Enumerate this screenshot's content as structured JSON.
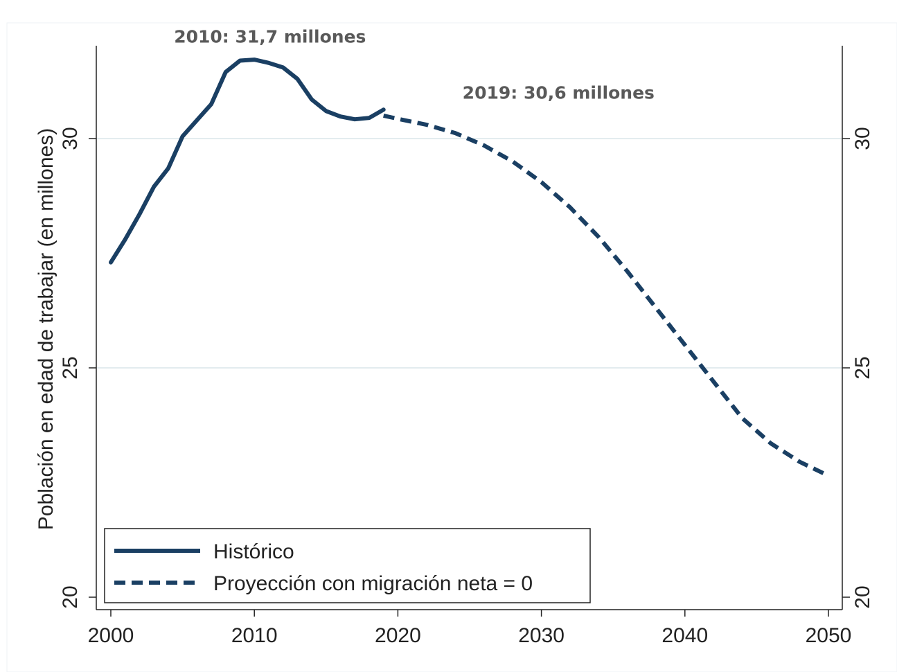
{
  "chart_data": {
    "type": "line",
    "ylabel": "Población en edad de trabajar (en millones)",
    "xlabel": "",
    "xlim": [
      2000,
      2050
    ],
    "ylim": [
      20,
      32
    ],
    "x_ticks": [
      2000,
      2010,
      2020,
      2030,
      2040,
      2050
    ],
    "y_ticks": [
      20,
      25,
      30
    ],
    "grid": true,
    "legend_placement": "bottom-left",
    "annotations": [
      {
        "text": "2010: 31,7 millones",
        "x": 2010,
        "y": 31.7
      },
      {
        "text": "2019: 30,6 millones",
        "x": 2019,
        "y": 30.6
      }
    ],
    "series": [
      {
        "name": "Histórico",
        "style": "solid",
        "color": "#1a3f63",
        "x": [
          2000,
          2001,
          2002,
          2003,
          2004,
          2005,
          2006,
          2007,
          2008,
          2009,
          2010,
          2011,
          2012,
          2013,
          2014,
          2015,
          2016,
          2017,
          2018,
          2019
        ],
        "y": [
          27.3,
          27.8,
          28.35,
          28.95,
          29.35,
          30.05,
          30.4,
          30.75,
          31.45,
          31.7,
          31.72,
          31.65,
          31.55,
          31.3,
          30.85,
          30.6,
          30.48,
          30.42,
          30.45,
          30.63
        ]
      },
      {
        "name": "Proyección con migración neta = 0",
        "style": "dashed",
        "color": "#1a3f63",
        "x": [
          2019,
          2020,
          2022,
          2024,
          2026,
          2028,
          2030,
          2032,
          2034,
          2036,
          2038,
          2040,
          2042,
          2044,
          2046,
          2048,
          2050
        ],
        "y": [
          30.5,
          30.43,
          30.3,
          30.12,
          29.85,
          29.5,
          29.05,
          28.5,
          27.85,
          27.1,
          26.3,
          25.5,
          24.7,
          23.9,
          23.35,
          22.95,
          22.65
        ]
      }
    ]
  }
}
